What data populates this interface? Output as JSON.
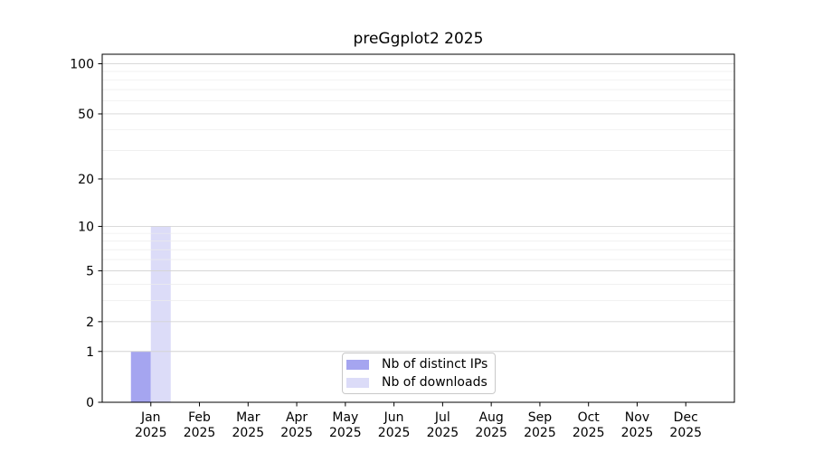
{
  "chart_data": {
    "type": "bar",
    "title": "preGgplot2 2025",
    "categories": [
      {
        "month": "Jan",
        "year": "2025"
      },
      {
        "month": "Feb",
        "year": "2025"
      },
      {
        "month": "Mar",
        "year": "2025"
      },
      {
        "month": "Apr",
        "year": "2025"
      },
      {
        "month": "May",
        "year": "2025"
      },
      {
        "month": "Jun",
        "year": "2025"
      },
      {
        "month": "Jul",
        "year": "2025"
      },
      {
        "month": "Aug",
        "year": "2025"
      },
      {
        "month": "Sep",
        "year": "2025"
      },
      {
        "month": "Oct",
        "year": "2025"
      },
      {
        "month": "Nov",
        "year": "2025"
      },
      {
        "month": "Dec",
        "year": "2025"
      }
    ],
    "series": [
      {
        "name": "Nb of distinct IPs",
        "color": "#a5a5f0",
        "values": [
          1,
          0,
          0,
          0,
          0,
          0,
          0,
          0,
          0,
          0,
          0,
          0
        ]
      },
      {
        "name": "Nb of downloads",
        "color": "#dcdcf8",
        "values": [
          10,
          0,
          0,
          0,
          0,
          0,
          0,
          0,
          0,
          0,
          0,
          0
        ]
      }
    ],
    "yscale": "log1p",
    "ylim": [
      0,
      114
    ],
    "yticks": [
      0,
      1,
      2,
      5,
      10,
      20,
      50,
      100
    ],
    "yticks_minor": [
      3,
      4,
      6,
      7,
      8,
      9,
      30,
      40,
      60,
      70,
      80,
      90
    ],
    "grid": "major+minor",
    "legend_position": "lower center",
    "colors": {
      "grid_major": "#d4d4d4",
      "grid_minor": "#ececec",
      "axis": "#000000",
      "text": "#000000",
      "legend_border": "#c9c9c9",
      "legend_background": "#ffffff"
    }
  }
}
